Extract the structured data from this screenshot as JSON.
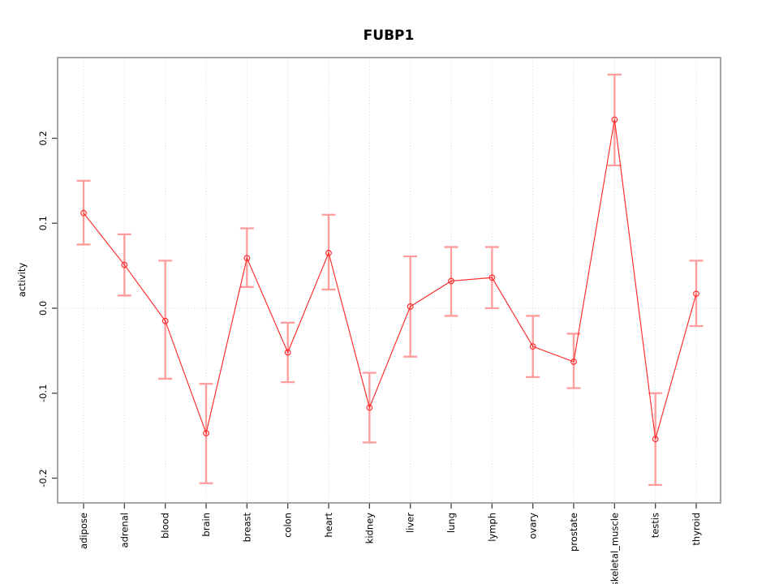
{
  "chart_data": {
    "type": "line",
    "title": "FUBP1",
    "xlabel": "",
    "ylabel": "activity",
    "legend": null,
    "categories": [
      "adipose",
      "adrenal",
      "blood",
      "brain",
      "breast",
      "colon",
      "heart",
      "kidney",
      "liver",
      "lung",
      "lymph",
      "ovary",
      "prostate",
      "skeletal_muscle",
      "testis",
      "thyroid"
    ],
    "series": [
      {
        "name": "activity",
        "marker": "open-circle",
        "values": [
          0.112,
          0.051,
          -0.015,
          -0.147,
          0.059,
          -0.052,
          0.065,
          -0.117,
          0.002,
          0.032,
          0.036,
          -0.045,
          -0.063,
          0.222,
          -0.154,
          0.017
        ],
        "ci_low": [
          0.075,
          0.015,
          -0.083,
          -0.206,
          0.025,
          -0.087,
          0.022,
          -0.158,
          -0.057,
          -0.009,
          0.0,
          -0.081,
          -0.094,
          0.168,
          -0.208,
          -0.021
        ],
        "ci_high": [
          0.15,
          0.087,
          0.056,
          -0.089,
          0.094,
          -0.017,
          0.11,
          -0.076,
          0.061,
          0.072,
          0.072,
          -0.009,
          -0.03,
          0.275,
          -0.1,
          0.056
        ]
      }
    ],
    "yticks": [
      {
        "label": "-0.2",
        "value": -0.2
      },
      {
        "label": "-0.1",
        "value": -0.1
      },
      {
        "label": "0.0",
        "value": 0.0
      },
      {
        "label": "0.1",
        "value": 0.1
      },
      {
        "label": "0.2",
        "value": 0.2
      }
    ],
    "ylim": [
      -0.229,
      0.295
    ],
    "grid": {
      "vertical_dotted_per_category": true,
      "horizontal_dotted_at_zero": true
    },
    "colors": {
      "line": "#ff2a2a",
      "point": "#ff2a2a",
      "error_bar": "#ff9c9c",
      "grid": "#d4d4d4",
      "frame": "#8f8f8f",
      "tick": "#404040",
      "text": "#000000",
      "background": "#ffffff"
    }
  }
}
